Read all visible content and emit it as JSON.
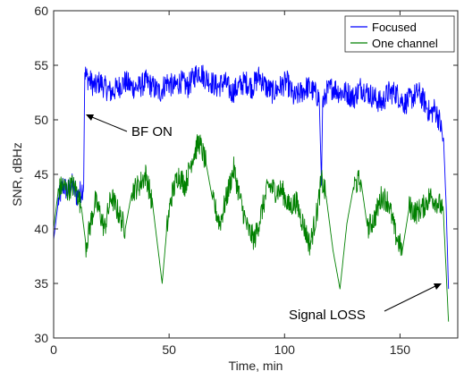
{
  "chart_data": {
    "type": "line",
    "title": "",
    "xlabel": "Time, min",
    "ylabel": "SNR, dBHz",
    "xlim": [
      0,
      175
    ],
    "ylim": [
      30,
      60
    ],
    "xticks": [
      0,
      50,
      100,
      150
    ],
    "yticks": [
      30,
      35,
      40,
      45,
      50,
      55,
      60
    ],
    "grid": false,
    "legend_position": "top-right",
    "series": [
      {
        "name": "Focused",
        "color": "#0000ff",
        "x": [
          0,
          2,
          4,
          6,
          8,
          10,
          12,
          13,
          13.5,
          14,
          16,
          18,
          20,
          22,
          25,
          28,
          31,
          34,
          37,
          40,
          43,
          46,
          49,
          52,
          55,
          58,
          61,
          63,
          65,
          68,
          71,
          74,
          77,
          80,
          83,
          86,
          89,
          92,
          95,
          98,
          101,
          104,
          107,
          110,
          113,
          115,
          116,
          116.5,
          117,
          118,
          121,
          124,
          127,
          130,
          133,
          136,
          139,
          142,
          145,
          148,
          150,
          152,
          155,
          158,
          161,
          163,
          165,
          167,
          168,
          169,
          170,
          171
        ],
        "y": [
          39,
          42.5,
          44,
          43.5,
          44,
          43,
          43.5,
          44,
          54.5,
          54,
          53.5,
          53,
          53.5,
          53,
          52.5,
          53,
          53.5,
          53,
          53,
          53.5,
          53,
          52.5,
          53.5,
          53,
          53.5,
          53,
          54,
          54.5,
          54,
          53.5,
          53,
          53.5,
          52.5,
          53,
          53.5,
          53,
          54,
          53,
          52.5,
          53,
          53.5,
          52,
          52.5,
          53,
          52.5,
          52,
          44,
          52,
          51.5,
          52.5,
          53,
          52.5,
          52.5,
          52,
          53,
          52.5,
          52,
          51.5,
          52.5,
          52.5,
          52,
          51.5,
          52,
          52.5,
          51.5,
          50.5,
          51,
          50,
          49,
          47.5,
          42,
          34.5
        ]
      },
      {
        "name": "One channel",
        "color": "#008000",
        "x": [
          0,
          2,
          4,
          6,
          8,
          10,
          12,
          14,
          16,
          18,
          20,
          22,
          25,
          28,
          31,
          34,
          37,
          40,
          43,
          45,
          47,
          49,
          51,
          54,
          57,
          60,
          63,
          66,
          69,
          72,
          75,
          78,
          81,
          84,
          87,
          90,
          93,
          96,
          99,
          102,
          105,
          108,
          111,
          114,
          116,
          118,
          121,
          124,
          127,
          130,
          133,
          136,
          139,
          142,
          145,
          148,
          151,
          154,
          157,
          160,
          163,
          166,
          168,
          169,
          170,
          171
        ],
        "y": [
          40,
          43.5,
          44,
          43.5,
          44,
          43.5,
          42,
          38.5,
          40.5,
          42.5,
          41.5,
          40,
          43,
          41.5,
          40,
          43.5,
          44,
          45,
          42,
          38.5,
          35,
          40,
          43,
          45,
          44,
          46.5,
          48,
          46,
          42.5,
          40.5,
          43,
          45.5,
          42.5,
          40,
          39,
          41.5,
          44,
          43.5,
          43.5,
          42,
          42.5,
          40.5,
          38.5,
          41.5,
          44.5,
          43,
          38,
          34.5,
          40.5,
          44,
          44.5,
          40,
          41,
          43,
          42.5,
          39.5,
          38,
          42,
          41.5,
          42,
          43,
          42.5,
          42,
          40.5,
          36,
          31.5
        ]
      }
    ],
    "annotations": [
      {
        "text": "BF ON",
        "x": 14,
        "y": 50.5
      },
      {
        "text": "Signal LOSS",
        "x": 171,
        "y": 34.5
      }
    ]
  },
  "legend": {
    "items": [
      {
        "label": "Focused",
        "color": "#0000ff"
      },
      {
        "label": "One channel",
        "color": "#008000"
      }
    ]
  }
}
